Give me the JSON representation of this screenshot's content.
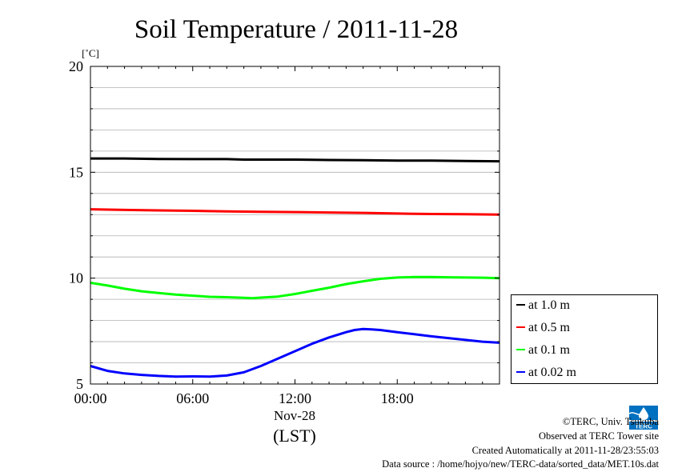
{
  "chart_data": {
    "type": "line",
    "title": "Soil Temperature / 2011-11-28",
    "ylabel": "[˚C]",
    "xlabel": "(LST)",
    "date_label": "Nov-28",
    "x_unit": "hours",
    "xlim": [
      0,
      24
    ],
    "ylim": [
      5,
      20
    ],
    "x_ticks": [
      {
        "value": 0,
        "label": "00:00"
      },
      {
        "value": 6,
        "label": "06:00"
      },
      {
        "value": 12,
        "label": "12:00"
      },
      {
        "value": 18,
        "label": "18:00"
      }
    ],
    "y_ticks": [
      {
        "value": 5,
        "label": "5"
      },
      {
        "value": 10,
        "label": "10"
      },
      {
        "value": 15,
        "label": "15"
      },
      {
        "value": 20,
        "label": "20"
      }
    ],
    "grid": true,
    "legend_position": "right",
    "series": [
      {
        "name": "at 1.0 m",
        "color": "#000000",
        "x": [
          0,
          2,
          4,
          6,
          8,
          9,
          10,
          12,
          14,
          16,
          18,
          20,
          22,
          24
        ],
        "y": [
          15.65,
          15.65,
          15.63,
          15.62,
          15.62,
          15.6,
          15.6,
          15.6,
          15.58,
          15.57,
          15.55,
          15.55,
          15.53,
          15.52
        ]
      },
      {
        "name": "at 0.5 m",
        "color": "#ff0000",
        "x": [
          0,
          2,
          4,
          6,
          8,
          10,
          12,
          14,
          16,
          18,
          20,
          22,
          24
        ],
        "y": [
          13.25,
          13.22,
          13.2,
          13.18,
          13.15,
          13.13,
          13.12,
          13.1,
          13.08,
          13.05,
          13.03,
          13.02,
          13.0
        ]
      },
      {
        "name": "at 0.1 m",
        "color": "#00ff00",
        "x": [
          0,
          1,
          2,
          3,
          4,
          5,
          6,
          7,
          8,
          9,
          9.5,
          10,
          11,
          12,
          13,
          14,
          15,
          16,
          17,
          18,
          19,
          20,
          21,
          22,
          23,
          24
        ],
        "y": [
          9.78,
          9.65,
          9.5,
          9.38,
          9.3,
          9.22,
          9.17,
          9.12,
          9.1,
          9.07,
          9.05,
          9.08,
          9.13,
          9.25,
          9.4,
          9.55,
          9.72,
          9.85,
          9.97,
          10.03,
          10.05,
          10.05,
          10.04,
          10.03,
          10.02,
          10.0
        ]
      },
      {
        "name": "at 0.02 m",
        "color": "#0000ff",
        "x": [
          0,
          1,
          2,
          3,
          4,
          5,
          6,
          7,
          8,
          9,
          10,
          11,
          12,
          13,
          14,
          15,
          15.5,
          16,
          16.5,
          17,
          18,
          19,
          20,
          21,
          22,
          23,
          24
        ],
        "y": [
          5.85,
          5.62,
          5.5,
          5.43,
          5.38,
          5.35,
          5.36,
          5.35,
          5.4,
          5.55,
          5.85,
          6.2,
          6.55,
          6.9,
          7.2,
          7.45,
          7.55,
          7.6,
          7.58,
          7.55,
          7.45,
          7.35,
          7.25,
          7.17,
          7.08,
          7.0,
          6.95
        ]
      }
    ]
  },
  "credits": {
    "copyright": "©TERC, Univ. Tsukuba",
    "observed": "Observed at TERC Tower site",
    "created": "Created Automatically at 2011-11-28/23:55:03",
    "source": "Data source : /home/hojyo/new/TERC-data/sorted_data/MET.10s.dat"
  },
  "logo_text": "TERC"
}
